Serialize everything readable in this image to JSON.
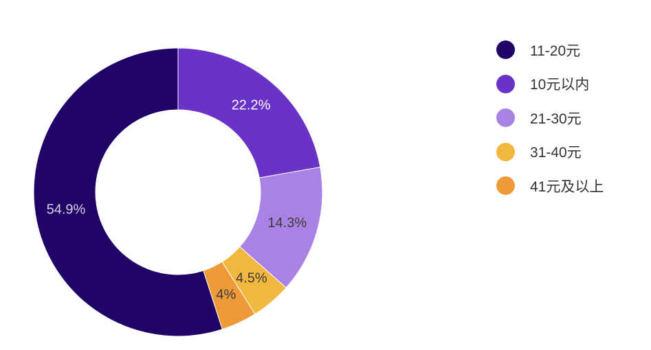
{
  "chart_data": {
    "type": "pie",
    "donut": true,
    "legend_position": "right",
    "slices": [
      {
        "label": "10元以内",
        "value": 22.2,
        "display": "22.2%",
        "color": "#6a33c8",
        "text_color": "#ffffff"
      },
      {
        "label": "21-30元",
        "value": 14.3,
        "display": "14.3%",
        "color": "#aa82e4",
        "text_color": "#3b3b3b"
      },
      {
        "label": "31-40元",
        "value": 4.5,
        "display": "4.5%",
        "color": "#f1b73f",
        "text_color": "#3b3b3b"
      },
      {
        "label": "41元及以上",
        "value": 4,
        "display": "4%",
        "color": "#ef9a39",
        "text_color": "#3b3b3b"
      },
      {
        "label": "11-20元",
        "value": 54.9,
        "display": "54.9%",
        "color": "#1f0366",
        "text_color": "#d7d3e6"
      }
    ],
    "legend_order": [
      "11-20元",
      "10元以内",
      "21-30元",
      "31-40元",
      "41元及以上"
    ]
  }
}
